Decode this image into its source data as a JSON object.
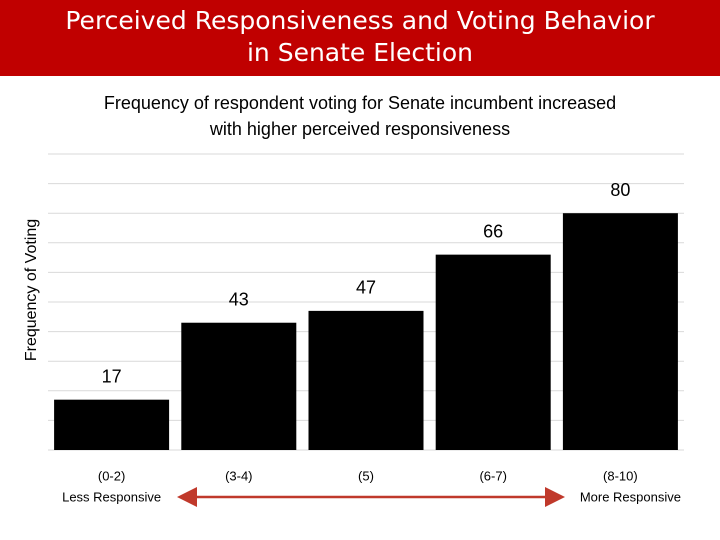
{
  "chart_data": {
    "type": "bar",
    "title": [
      "Perceived Responsiveness and Voting Behavior",
      "in Senate Election"
    ],
    "subtitle": [
      "Frequency of respondent voting for Senate incumbent increased",
      "with higher perceived responsiveness"
    ],
    "y_label": "Frequency of Voting",
    "categories": [
      "(0-2)",
      "(3-4)",
      "(5)",
      "(6-7)",
      "(8-10)"
    ],
    "values": [
      17,
      43,
      47,
      66,
      80
    ],
    "color": "#000000",
    "ylim": [
      0,
      100
    ],
    "yticks": [
      0,
      10,
      20,
      30,
      40,
      50,
      60,
      70,
      80,
      90,
      100
    ],
    "grid": true,
    "scale_labels": [
      "Less Responsive",
      "More Responsive"
    ]
  }
}
